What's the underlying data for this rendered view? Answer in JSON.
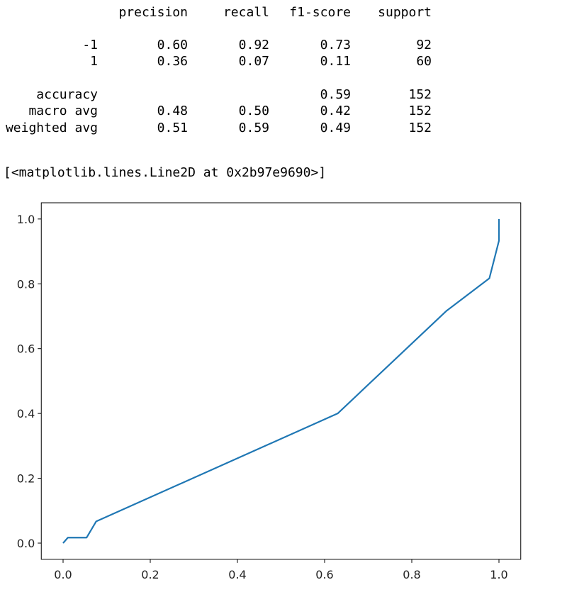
{
  "report": {
    "header": [
      "precision",
      "recall",
      "f1-score",
      "support"
    ],
    "rows": [
      [
        "-1",
        "0.60",
        "0.92",
        "0.73",
        "92"
      ],
      [
        "1",
        "0.36",
        "0.07",
        "0.11",
        "60"
      ],
      [
        "accuracy",
        null,
        null,
        "0.59",
        "152"
      ],
      [
        "macro avg",
        "0.48",
        "0.50",
        "0.42",
        "152"
      ],
      [
        "weighted avg",
        "0.51",
        "0.59",
        "0.49",
        "152"
      ]
    ]
  },
  "output_text": "[<matplotlib.lines.Line2D at 0x2b97e9690>]",
  "chart_data": {
    "type": "line",
    "series": [
      {
        "color": "#1f77b4",
        "x": [
          0,
          0.011,
          0.054,
          0.076,
          0.63,
          0.88,
          0.978,
          1.0,
          1.0
        ],
        "values": [
          0,
          0.017,
          0.017,
          0.067,
          0.4,
          0.717,
          0.817,
          0.933,
          1.0
        ]
      }
    ],
    "xlim": [
      -0.05,
      1.05
    ],
    "ylim": [
      -0.05,
      1.05
    ],
    "xticks": [
      {
        "value": 0,
        "label": "0.0"
      },
      {
        "value": 0.2,
        "label": "0.2"
      },
      {
        "value": 0.4,
        "label": "0.4"
      },
      {
        "value": 0.6,
        "label": "0.6"
      },
      {
        "value": 0.8,
        "label": "0.8"
      },
      {
        "value": 1,
        "label": "1.0"
      }
    ],
    "yticks": [
      {
        "value": 0,
        "label": "0.0"
      },
      {
        "value": 0.2,
        "label": "0.2"
      },
      {
        "value": 0.4,
        "label": "0.4"
      },
      {
        "value": 0.6,
        "label": "0.6"
      },
      {
        "value": 0.8,
        "label": "0.8"
      },
      {
        "value": 1,
        "label": "1.0"
      }
    ],
    "grid": false
  }
}
